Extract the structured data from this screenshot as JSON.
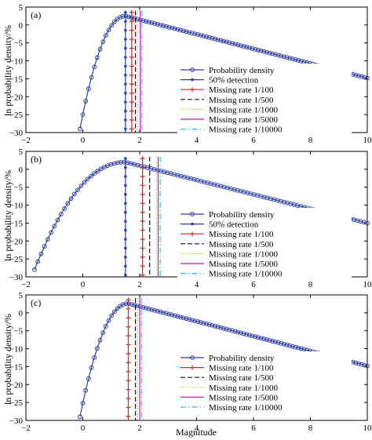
{
  "figure": {
    "xlabel": "Magnitude",
    "ylabel": "ln probability density/%"
  },
  "chart_data": [
    {
      "type": "line",
      "panel_label": "(a)",
      "xlim": [
        -2,
        10
      ],
      "ylim": [
        -30,
        5
      ],
      "xticks": [
        -2,
        0,
        2,
        4,
        6,
        8,
        10
      ],
      "yticks": [
        5,
        0,
        -5,
        -10,
        -15,
        -20,
        -25,
        -30
      ],
      "grid": false,
      "legend_position": "lower-right",
      "curve": {
        "mc": 1.5,
        "peak": 2.5,
        "left_end_x": -0.1,
        "left_end_y": -29,
        "right_end_y": -14.8
      },
      "series": [
        {
          "name": "Probability density",
          "color": "#2f3fa8",
          "style": "line-circle"
        },
        {
          "name": "50% detection",
          "color": "#2f3fa8",
          "style": "vline-star",
          "x": 1.5
        },
        {
          "name": "Missing rate 1/100",
          "color": "#e0202a",
          "style": "vline-plus",
          "x": 1.72
        },
        {
          "name": "Missing rate 1/500",
          "color": "#111111",
          "style": "vline-dash",
          "x": 1.85
        },
        {
          "name": "Missing rate 1/1000",
          "color": "#c8c020",
          "style": "vline-dot",
          "x": 1.92
        },
        {
          "name": "Missing rate 1/5000",
          "color": "#d01ac8",
          "style": "vline-solid",
          "x": 2.02
        },
        {
          "name": "Missing rate 1/10000",
          "color": "#40b8d8",
          "style": "vline-dashdot",
          "x": 2.08
        }
      ]
    },
    {
      "type": "line",
      "panel_label": "(b)",
      "xlim": [
        -2,
        10
      ],
      "ylim": [
        -30,
        5
      ],
      "xticks": [
        -2,
        0,
        2,
        4,
        6,
        8,
        10
      ],
      "yticks": [
        5,
        0,
        -5,
        -10,
        -15,
        -20,
        -25,
        -30
      ],
      "grid": false,
      "legend_position": "lower-right",
      "curve": {
        "mc": 1.5,
        "peak": 2.0,
        "left_end_x": -1.7,
        "left_end_y": -28,
        "right_end_y": -15
      },
      "series": [
        {
          "name": "Probability density",
          "color": "#2f3fa8",
          "style": "line-circle"
        },
        {
          "name": "50% detection",
          "color": "#2f3fa8",
          "style": "vline-star",
          "x": 1.5
        },
        {
          "name": "Missing rate 1/100",
          "color": "#e0202a",
          "style": "vline-plus",
          "x": 2.1
        },
        {
          "name": "Missing rate 1/500",
          "color": "#111111",
          "style": "vline-dash",
          "x": 2.35
        },
        {
          "name": "Missing rate 1/1000",
          "color": "#c8c020",
          "style": "vline-dot",
          "x": 2.6
        },
        {
          "name": "Missing rate 1/5000",
          "color": "#d01ac8",
          "style": "vline-solid",
          "x": 2.65
        },
        {
          "name": "Missing rate 1/10000",
          "color": "#40b8d8",
          "style": "vline-dashdot",
          "x": 2.72
        }
      ]
    },
    {
      "type": "line",
      "panel_label": "(c)",
      "xlim": [
        -2,
        10
      ],
      "ylim": [
        -30,
        5
      ],
      "xticks": [
        -2,
        0,
        2,
        4,
        6,
        8,
        10
      ],
      "yticks": [
        5,
        0,
        -5,
        -10,
        -15,
        -20,
        -25,
        -30
      ],
      "grid": false,
      "legend_position": "lower-right",
      "curve": {
        "mc": 1.6,
        "peak": 2.6,
        "left_end_x": -0.1,
        "left_end_y": -29,
        "right_end_y": -14.8
      },
      "series": [
        {
          "name": "Probability density",
          "color": "#2f3fa8",
          "style": "line-circle"
        },
        {
          "name": "Missing rate 1/100",
          "color": "#e0202a",
          "style": "vline-plus",
          "x": 1.6
        },
        {
          "name": "Missing rate 1/500",
          "color": "#111111",
          "style": "vline-dash",
          "x": 1.85
        },
        {
          "name": "Missing rate 1/1000",
          "color": "#c8c020",
          "style": "vline-dot",
          "x": 1.92
        },
        {
          "name": "Missing rate 1/5000",
          "color": "#d01ac8",
          "style": "vline-solid",
          "x": 2.0
        },
        {
          "name": "Missing rate 1/10000",
          "color": "#40b8d8",
          "style": "vline-dashdot",
          "x": 2.06
        }
      ]
    }
  ]
}
